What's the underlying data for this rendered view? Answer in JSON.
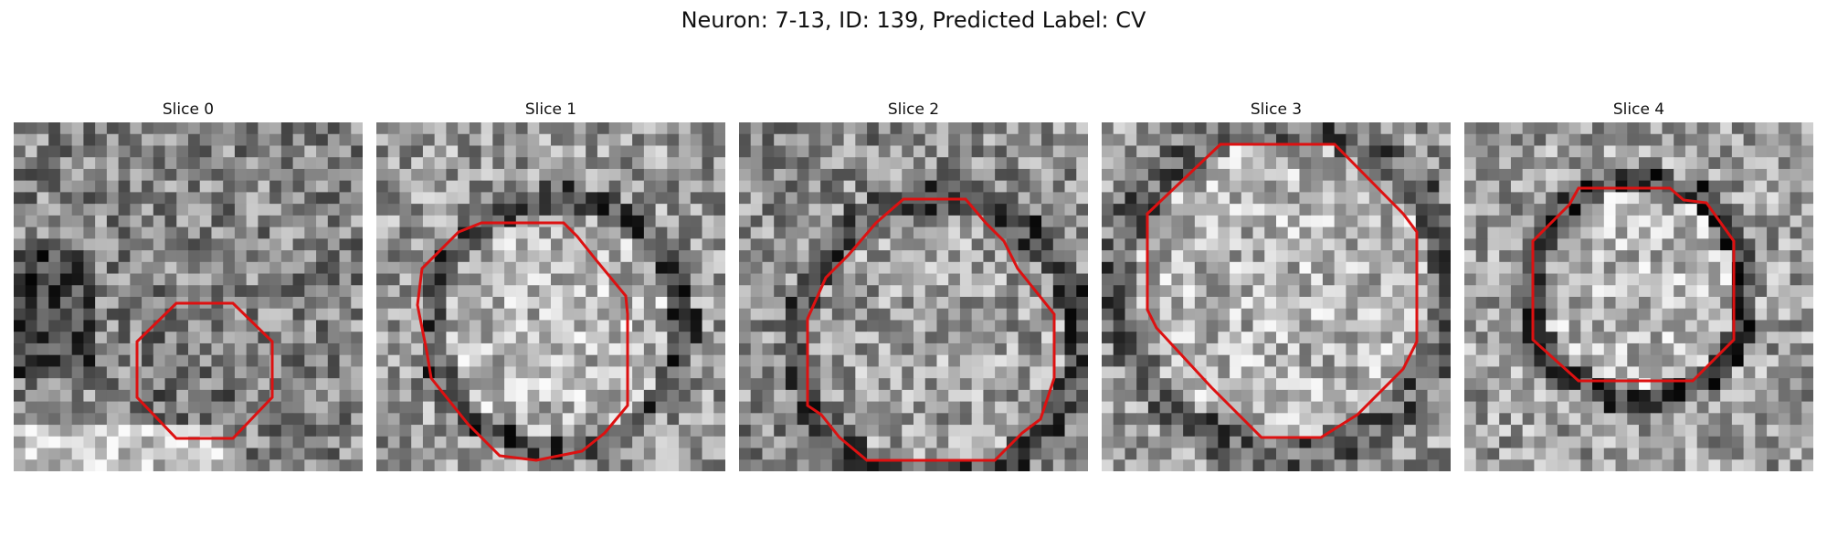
{
  "figure": {
    "title": "Neuron: 7-13, ID: 139, Predicted Label: CV"
  },
  "panels": [
    {
      "label": "Slice 0"
    },
    {
      "label": "Slice 1"
    },
    {
      "label": "Slice 2"
    },
    {
      "label": "Slice 3"
    },
    {
      "label": "Slice 4"
    }
  ],
  "colors": {
    "contour": "#dd1111",
    "background": "#ffffff"
  }
}
